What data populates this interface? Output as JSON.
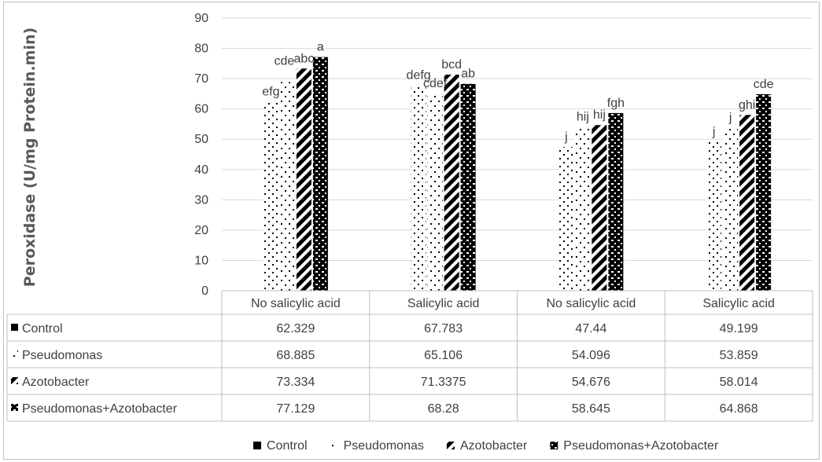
{
  "chart_data": {
    "type": "bar",
    "ylabel": "Peroxidase (U/mg Protein.min)",
    "ylim": [
      0,
      90
    ],
    "yticks": [
      "0",
      "10",
      "20",
      "30",
      "40",
      "50",
      "60",
      "70",
      "80",
      "90"
    ],
    "grid": true,
    "legend_position": "bottom",
    "categories": [
      "No salicylic  acid",
      "Salicylic  acid",
      "No salicylic  acid",
      "Salicylic  acid"
    ],
    "series": [
      {
        "name": "Control",
        "pattern": "solid",
        "values": [
          62.329,
          67.783,
          47.44,
          49.199
        ],
        "labels": [
          "efg",
          "defg",
          "j",
          "j"
        ],
        "table_values": [
          "62.329",
          "67.783",
          "47.44",
          "49.199"
        ]
      },
      {
        "name": "Pseudomonas",
        "pattern": "sparse-dots",
        "values": [
          68.885,
          65.106,
          54.096,
          53.859
        ],
        "labels": [
          "",
          "cdef",
          "hij",
          "j"
        ],
        "table_values": [
          "68.885",
          "65.106",
          "54.096",
          "53.859"
        ]
      },
      {
        "name": "Azotobacter",
        "pattern": "diagonal-stripes",
        "values": [
          73.334,
          71.3375,
          54.676,
          58.014
        ],
        "labels": [
          "abc",
          "bcd",
          "hij",
          "ghi"
        ],
        "table_values": [
          "73.334",
          "71.3375",
          "54.676",
          "58.014"
        ]
      },
      {
        "name": "Pseudomonas+Azotobacter",
        "pattern": "checker",
        "values": [
          77.129,
          68.28,
          58.645,
          64.868
        ],
        "labels": [
          "a",
          "ab",
          "fgh",
          "cde"
        ],
        "table_values": [
          "77.129",
          "68.28",
          "58.645",
          "64.868"
        ]
      }
    ],
    "extra_labels": [
      {
        "series": 1,
        "category": 0,
        "text": "cde"
      }
    ]
  },
  "colors": {
    "bar": "#000000",
    "grid": "#d9d9d9",
    "text": "#404040",
    "axis_title": "#595959",
    "table_border": "#bfbfbf"
  }
}
